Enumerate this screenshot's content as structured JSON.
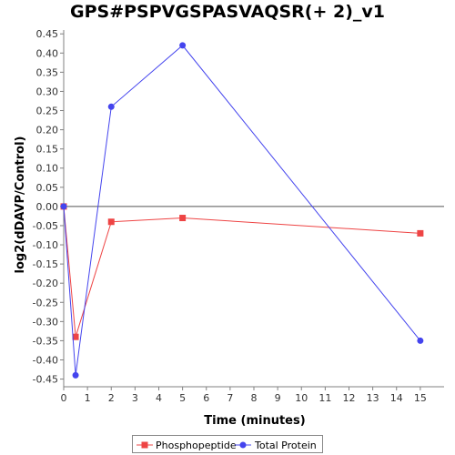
{
  "chart_data": {
    "type": "line",
    "title": "GPS#PSPVGSPASVAQSR(+ 2)_v1",
    "xlabel": "Time (minutes)",
    "ylabel": "log2(dDAVP/Control)",
    "xlim": [
      0,
      16
    ],
    "ylim": [
      -0.47,
      0.46
    ],
    "xticks": [
      0,
      1,
      2,
      3,
      4,
      5,
      6,
      7,
      8,
      9,
      10,
      11,
      12,
      13,
      14,
      15
    ],
    "yticks": [
      0.45,
      0.4,
      0.35,
      0.3,
      0.25,
      0.2,
      0.15,
      0.1,
      0.05,
      0.0,
      -0.05,
      -0.1,
      -0.15,
      -0.2,
      -0.25,
      -0.3,
      -0.35,
      -0.4,
      -0.45
    ],
    "zero_line": true,
    "grid": false,
    "legend_position": "bottom",
    "series": [
      {
        "name": "Phosphopeptide",
        "color": "#ee4444",
        "marker": "square",
        "x": [
          0,
          0.5,
          2,
          5,
          15
        ],
        "y": [
          0.0,
          -0.34,
          -0.04,
          -0.03,
          -0.07
        ]
      },
      {
        "name": "Total Protein",
        "color": "#4444ee",
        "marker": "circle",
        "x": [
          0,
          0.5,
          2,
          5,
          15
        ],
        "y": [
          0.0,
          -0.44,
          0.26,
          0.42,
          -0.35
        ]
      }
    ]
  }
}
